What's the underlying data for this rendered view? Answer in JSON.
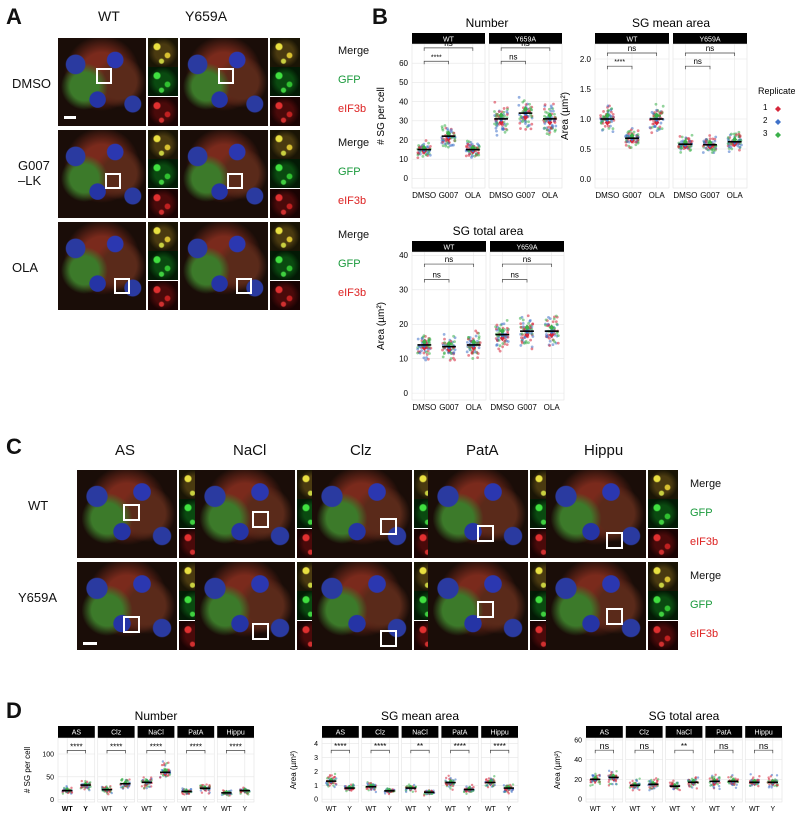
{
  "panel_labels": {
    "a": "A",
    "b": "B",
    "c": "C",
    "d": "D"
  },
  "channels": {
    "merge": "Merge",
    "gfp": "GFP",
    "eif": "eIF3b"
  },
  "panelA": {
    "col_labels": [
      "WT",
      "Y659A"
    ],
    "row_labels": [
      "DMSO",
      "G007\n–LK",
      "OLA"
    ]
  },
  "panelB": {
    "titles": {
      "number": "Number",
      "mean": "SG mean area",
      "total": "SG total area"
    },
    "facets": [
      "WT",
      "Y659A"
    ],
    "x_ticks": [
      "DMSO",
      "G007",
      "OLA"
    ],
    "ylabels": {
      "number": "# SG per cell",
      "mean": "Area (µm²)",
      "total": "Area (µm²)"
    },
    "yticks_number": [
      "0",
      "10",
      "20",
      "30",
      "40",
      "50",
      "60"
    ],
    "yticks_mean": [
      "0.0",
      "0.5",
      "1.0",
      "1.5",
      "2.0"
    ],
    "yticks_total": [
      "0",
      "10",
      "20",
      "30",
      "40"
    ],
    "sig": {
      "star4": "****",
      "ns": "ns",
      "star2": "**"
    },
    "legend": {
      "title": "Replicate",
      "items": [
        "1",
        "2",
        "3"
      ]
    }
  },
  "colors": {
    "rep1": "#d6273b",
    "rep2": "#3f71c9",
    "rep3": "#3bb04a",
    "facet_bg": "#000000",
    "grid": "#e6e6e6"
  },
  "panelC": {
    "col_labels": [
      "AS",
      "NaCl",
      "Clz",
      "PatA",
      "Hippu"
    ],
    "row_labels": [
      "WT",
      "Y659A"
    ]
  },
  "panelD": {
    "titles": {
      "number": "Number",
      "mean": "SG mean area",
      "total": "SG total area"
    },
    "facets": [
      "AS",
      "Clz",
      "NaCl",
      "PatA",
      "Hippu"
    ],
    "x_ticks": [
      "WT",
      "Y"
    ],
    "ylabels": {
      "number": "# SG per cell",
      "mean": "Area (µm²)",
      "total": "Area (µm²)"
    },
    "yticks_number": [
      "0",
      "50",
      "100"
    ],
    "yticks_mean": [
      "0",
      "1",
      "2",
      "3",
      "4"
    ],
    "yticks_total": [
      "0",
      "20",
      "40",
      "60"
    ],
    "sig_number": [
      "****",
      "****",
      "****",
      "****",
      "****"
    ],
    "sig_mean": [
      "****",
      "****",
      "**",
      "****",
      "****"
    ],
    "sig_total": [
      "ns",
      "ns",
      "**",
      "ns",
      "ns"
    ]
  },
  "chart_data": [
    {
      "type": "scatter",
      "title": "Number",
      "facets": [
        "WT",
        "Y659A"
      ],
      "categories": [
        "DMSO",
        "G007",
        "OLA"
      ],
      "ylabel": "# SG per cell",
      "ylim": [
        0,
        70
      ],
      "series": [
        {
          "name": "WT",
          "values": [
            15,
            22,
            15
          ]
        },
        {
          "name": "Y659A",
          "values": [
            31,
            34,
            31
          ]
        }
      ]
    },
    {
      "type": "scatter",
      "title": "SG mean area",
      "facets": [
        "WT",
        "Y659A"
      ],
      "categories": [
        "DMSO",
        "G007",
        "OLA"
      ],
      "ylabel": "Area (µm²)",
      "ylim": [
        0,
        2.2
      ],
      "series": [
        {
          "name": "WT",
          "values": [
            1.0,
            0.68,
            1.0
          ]
        },
        {
          "name": "Y659A",
          "values": [
            0.58,
            0.57,
            0.62
          ]
        }
      ]
    },
    {
      "type": "scatter",
      "title": "SG total area",
      "facets": [
        "WT",
        "Y659A"
      ],
      "categories": [
        "DMSO",
        "G007",
        "OLA"
      ],
      "ylabel": "Area (µm²)",
      "ylim": [
        0,
        40
      ],
      "series": [
        {
          "name": "WT",
          "values": [
            14,
            13.5,
            14
          ]
        },
        {
          "name": "Y659A",
          "values": [
            17,
            18,
            18
          ]
        }
      ]
    },
    {
      "type": "scatter",
      "title": "Number",
      "facets": [
        "AS",
        "Clz",
        "NaCl",
        "PatA",
        "Hippu"
      ],
      "categories": [
        "WT",
        "Y"
      ],
      "ylabel": "# SG per cell",
      "series": [
        {
          "name": "AS",
          "values": [
            20,
            32
          ]
        },
        {
          "name": "Clz",
          "values": [
            22,
            35
          ]
        },
        {
          "name": "NaCl",
          "values": [
            38,
            60
          ]
        },
        {
          "name": "PatA",
          "values": [
            18,
            25
          ]
        },
        {
          "name": "Hippu",
          "values": [
            15,
            20
          ]
        }
      ]
    },
    {
      "type": "scatter",
      "title": "SG mean area",
      "facets": [
        "AS",
        "Clz",
        "NaCl",
        "PatA",
        "Hippu"
      ],
      "categories": [
        "WT",
        "Y"
      ],
      "ylabel": "Area (µm²)",
      "series": [
        {
          "name": "AS",
          "values": [
            1.3,
            0.8
          ]
        },
        {
          "name": "Clz",
          "values": [
            0.9,
            0.6
          ]
        },
        {
          "name": "NaCl",
          "values": [
            0.8,
            0.5
          ]
        },
        {
          "name": "PatA",
          "values": [
            1.2,
            0.7
          ]
        },
        {
          "name": "Hippu",
          "values": [
            1.2,
            0.8
          ]
        }
      ]
    },
    {
      "type": "scatter",
      "title": "SG total area",
      "facets": [
        "AS",
        "Clz",
        "NaCl",
        "PatA",
        "Hippu"
      ],
      "categories": [
        "WT",
        "Y"
      ],
      "ylabel": "Area (µm²)",
      "series": [
        {
          "name": "AS",
          "values": [
            20,
            22
          ]
        },
        {
          "name": "Clz",
          "values": [
            14,
            15
          ]
        },
        {
          "name": "NaCl",
          "values": [
            13,
            17
          ]
        },
        {
          "name": "PatA",
          "values": [
            18,
            18
          ]
        },
        {
          "name": "Hippu",
          "values": [
            17,
            17
          ]
        }
      ]
    }
  ]
}
